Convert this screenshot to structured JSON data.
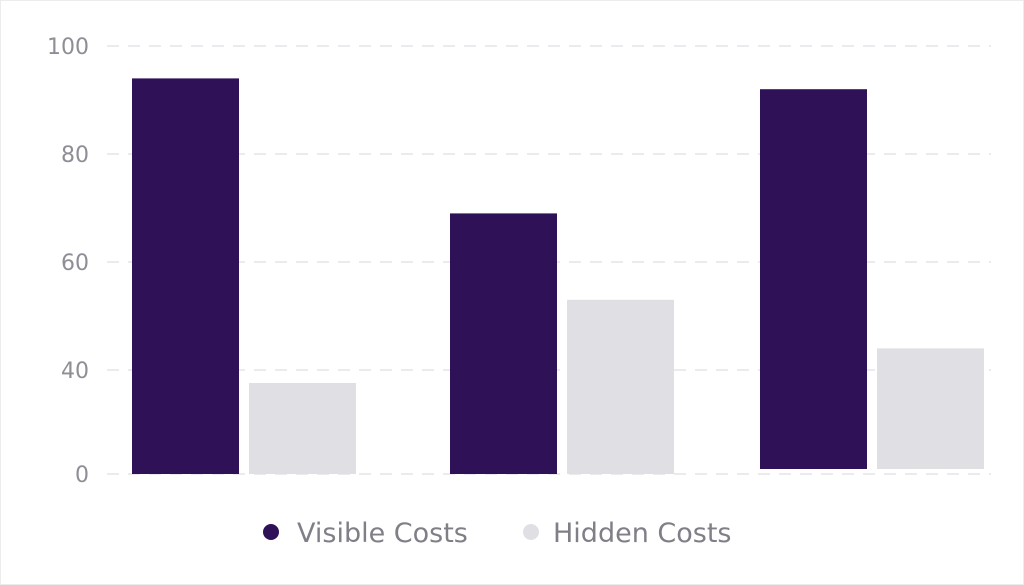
{
  "chart_data": {
    "type": "bar",
    "categories": [
      "",
      "",
      ""
    ],
    "series": [
      {
        "name": "Visible Costs",
        "color": "#2f1158",
        "values": [
          94,
          69,
          92
        ]
      },
      {
        "name": "Hidden Costs",
        "color": "#e0e0e4",
        "values": [
          35,
          53,
          44
        ]
      }
    ],
    "y_ticks": [
      "100",
      "80",
      "60",
      "40",
      "0"
    ],
    "grid": true,
    "legend_position": "bottom-center",
    "title": "",
    "xlabel": "",
    "ylabel": ""
  }
}
